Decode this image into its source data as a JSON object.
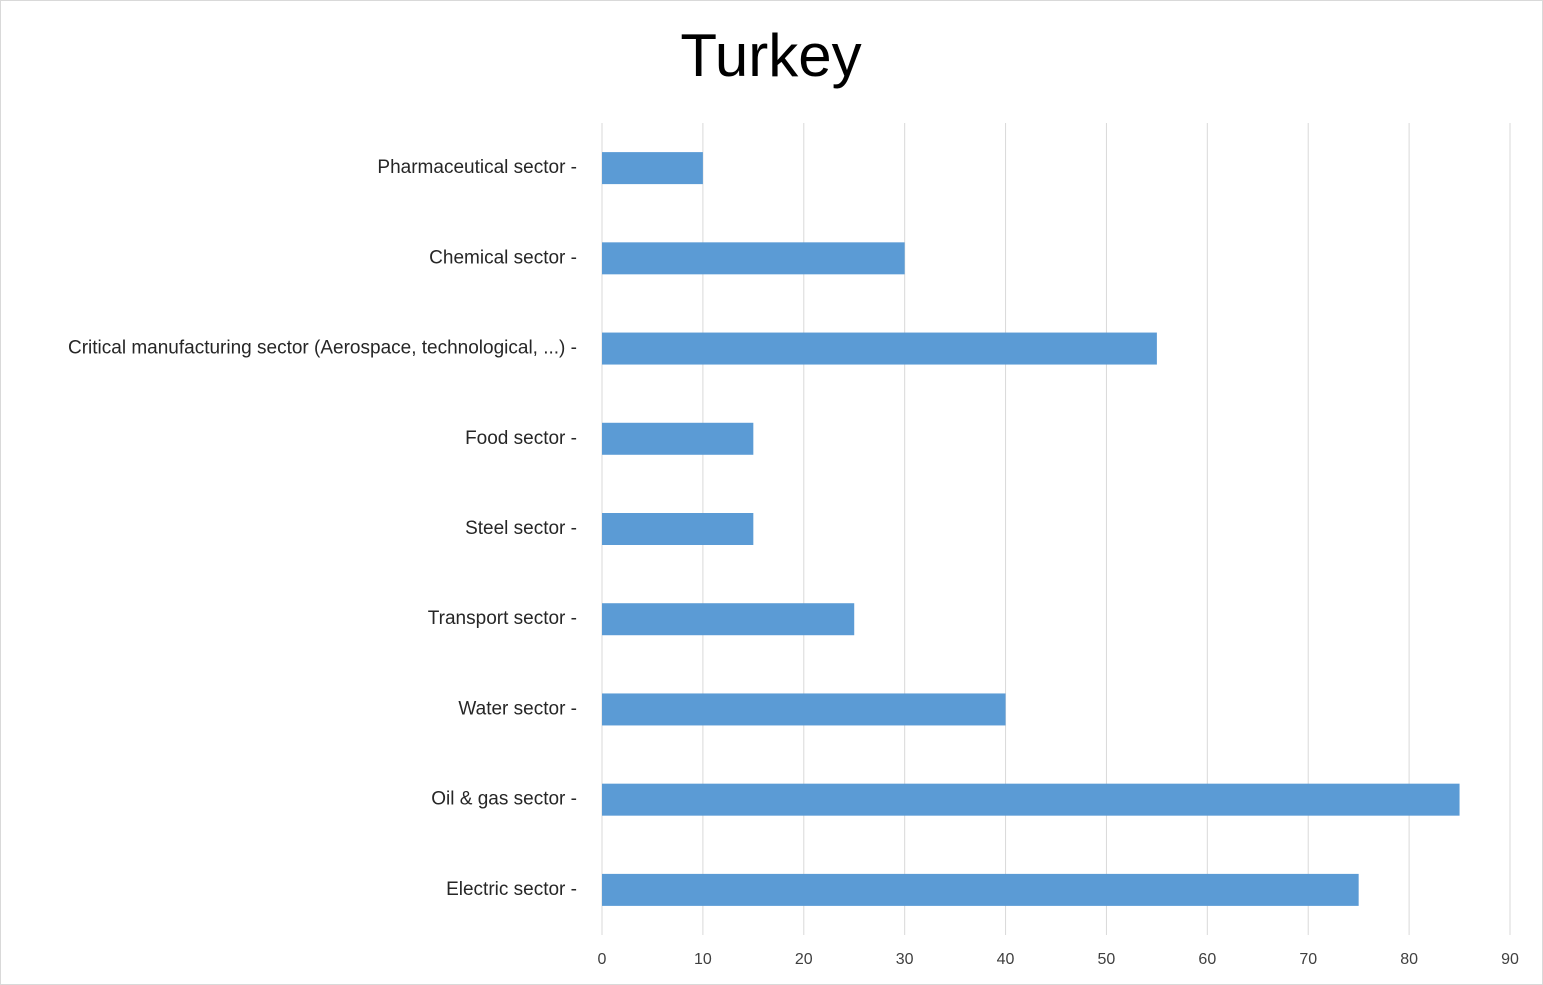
{
  "chart_data": {
    "type": "bar",
    "orientation": "horizontal",
    "title": "Turkey",
    "categories": [
      "Pharmaceutical sector -",
      "Chemical sector -",
      "Critical manufacturing sector (Aerospace, technological, ...) -",
      "Food sector -",
      "Steel sector -",
      "Transport sector -",
      "Water sector -",
      "Oil & gas sector -",
      "Electric sector -"
    ],
    "values": [
      10,
      30,
      55,
      15,
      15,
      25,
      40,
      85,
      75
    ],
    "color": "#5b9bd5",
    "xlim": [
      0,
      90
    ],
    "xticks": [
      0,
      10,
      20,
      30,
      40,
      50,
      60,
      70,
      80,
      90
    ],
    "grid": true
  }
}
